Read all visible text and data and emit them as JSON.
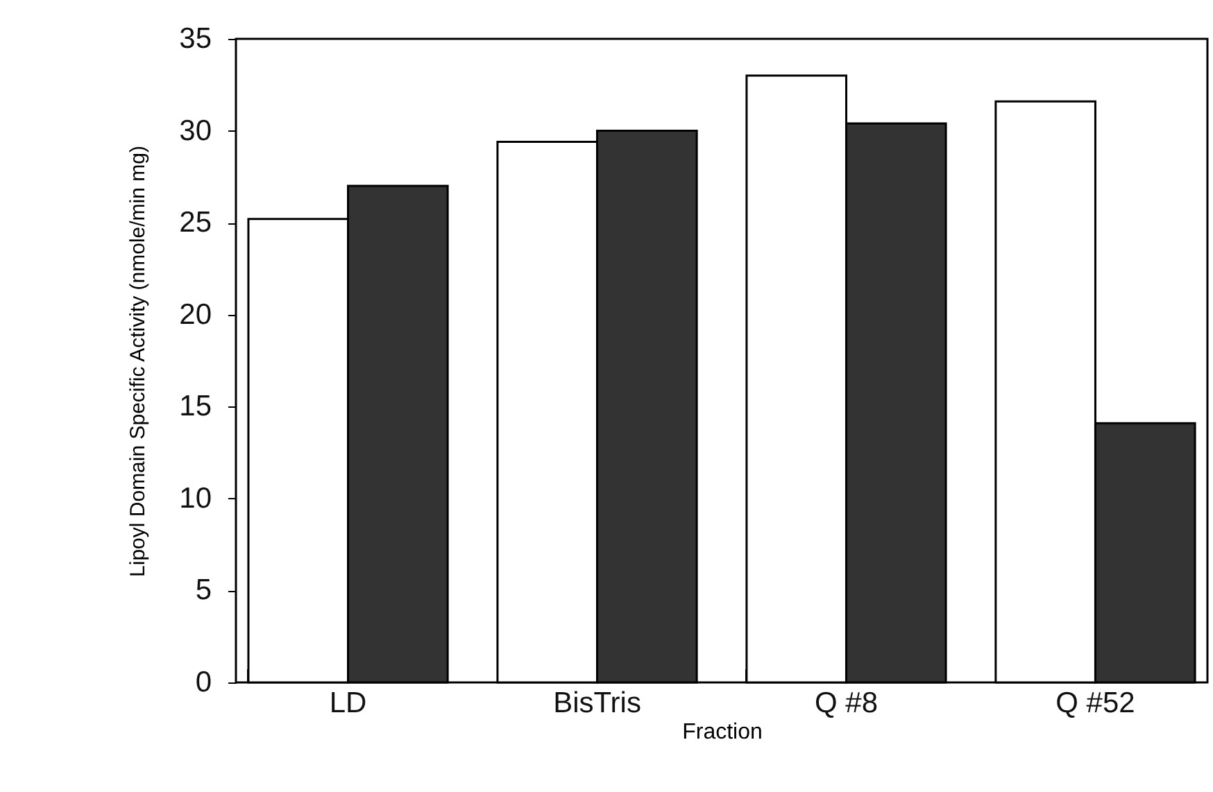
{
  "chart_data": {
    "type": "bar",
    "xlabel": "Fraction",
    "ylabel": "Lipoyl Domain Specific Activity (nmole/min mg)",
    "categories": [
      "LD",
      "BisTris",
      "Q #8",
      "Q #52"
    ],
    "series": [
      {
        "color": "#ffffff",
        "values": [
          25.2,
          29.4,
          33.0,
          31.6
        ]
      },
      {
        "color": "#333333",
        "values": [
          27.0,
          30.0,
          30.4,
          14.1
        ]
      }
    ],
    "ylim": [
      0,
      35
    ],
    "yticks": [
      0,
      5,
      10,
      15,
      20,
      25,
      30,
      35
    ],
    "grid": false,
    "legend": false
  }
}
